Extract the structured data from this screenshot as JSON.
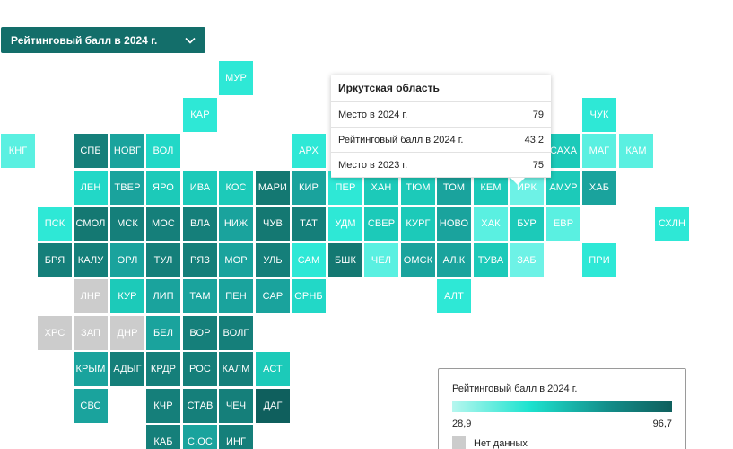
{
  "selector": {
    "label": "Рейтинговый балл в 2024 г."
  },
  "regions": [
    {
      "label": "МУР",
      "c": 6,
      "r": 0,
      "color": "#2ee8d6"
    },
    {
      "label": "КАР",
      "c": 5,
      "r": 1,
      "color": "#2ee8d6"
    },
    {
      "label": "КНГ",
      "c": 0,
      "r": 2,
      "color": "#5af0e1"
    },
    {
      "label": "СПБ",
      "c": 2,
      "r": 2,
      "color": "#157f7a"
    },
    {
      "label": "НОВГ",
      "c": 3,
      "r": 2,
      "color": "#1aa39d"
    },
    {
      "label": "ВОЛ",
      "c": 4,
      "r": 2,
      "color": "#22d8c7"
    },
    {
      "label": "АРХ",
      "c": 8,
      "r": 2,
      "color": "#2ee8d6"
    },
    {
      "label": "САХА",
      "c": 15,
      "r": 2,
      "color": "#1ccab9"
    },
    {
      "label": "МАГ",
      "c": 16,
      "r": 2,
      "color": "#5af0e1"
    },
    {
      "label": "КАМ",
      "c": 17,
      "r": 2,
      "color": "#5af0e1"
    },
    {
      "label": "ЧУК",
      "c": 16,
      "r": 1,
      "color": "#2ee8d6"
    },
    {
      "label": "ЛЕН",
      "c": 2,
      "r": 3,
      "color": "#22d8c7"
    },
    {
      "label": "ТВЕР",
      "c": 3,
      "r": 3,
      "color": "#1aa39d"
    },
    {
      "label": "ЯРО",
      "c": 4,
      "r": 3,
      "color": "#1ccab9"
    },
    {
      "label": "ИВА",
      "c": 5,
      "r": 3,
      "color": "#1ccab9"
    },
    {
      "label": "КОС",
      "c": 6,
      "r": 3,
      "color": "#1ccab9"
    },
    {
      "label": "МАРИ",
      "c": 7,
      "r": 3,
      "color": "#147872"
    },
    {
      "label": "КИР",
      "c": 8,
      "r": 3,
      "color": "#1aa39d"
    },
    {
      "label": "ПЕР",
      "c": 9,
      "r": 3,
      "color": "#2ee8d6"
    },
    {
      "label": "ХАН",
      "c": 10,
      "r": 3,
      "color": "#1ccab9"
    },
    {
      "label": "ТЮМ",
      "c": 11,
      "r": 3,
      "color": "#1ccab9"
    },
    {
      "label": "ТОМ",
      "c": 12,
      "r": 3,
      "color": "#1aa39d"
    },
    {
      "label": "КЕМ",
      "c": 13,
      "r": 3,
      "color": "#1ccab9"
    },
    {
      "label": "ИРК",
      "c": 14,
      "r": 3,
      "color": "#6df2e6"
    },
    {
      "label": "АМУР",
      "c": 15,
      "r": 3,
      "color": "#1ccab9"
    },
    {
      "label": "ХАБ",
      "c": 16,
      "r": 3,
      "color": "#1aa39d"
    },
    {
      "label": "ПСК",
      "c": 1,
      "r": 4,
      "color": "#2ee8d6"
    },
    {
      "label": "СМОЛ",
      "c": 2,
      "r": 4,
      "color": "#147872"
    },
    {
      "label": "МСК",
      "c": 3,
      "r": 4,
      "color": "#157f7a"
    },
    {
      "label": "МОС",
      "c": 4,
      "r": 4,
      "color": "#157f7a"
    },
    {
      "label": "ВЛА",
      "c": 5,
      "r": 4,
      "color": "#157f7a"
    },
    {
      "label": "НИЖ",
      "c": 6,
      "r": 4,
      "color": "#1aa39d"
    },
    {
      "label": "ЧУВ",
      "c": 7,
      "r": 4,
      "color": "#147872"
    },
    {
      "label": "ТАТ",
      "c": 8,
      "r": 4,
      "color": "#157f7a"
    },
    {
      "label": "УДМ",
      "c": 9,
      "r": 4,
      "color": "#2ee8d6"
    },
    {
      "label": "СВЕР",
      "c": 10,
      "r": 4,
      "color": "#1ccab9"
    },
    {
      "label": "КУРГ",
      "c": 11,
      "r": 4,
      "color": "#1ccab9"
    },
    {
      "label": "НОВО",
      "c": 12,
      "r": 4,
      "color": "#1aa39d"
    },
    {
      "label": "ХАК",
      "c": 13,
      "r": 4,
      "color": "#5af0e1"
    },
    {
      "label": "БУР",
      "c": 14,
      "r": 4,
      "color": "#1ccab9"
    },
    {
      "label": "ЕВР",
      "c": 15,
      "r": 4,
      "color": "#5af0e1"
    },
    {
      "label": "СХЛН",
      "c": 18,
      "r": 4,
      "color": "#2ee8d6"
    },
    {
      "label": "БРЯ",
      "c": 1,
      "r": 5,
      "color": "#157f7a"
    },
    {
      "label": "КАЛУ",
      "c": 2,
      "r": 5,
      "color": "#157f7a"
    },
    {
      "label": "ОРЛ",
      "c": 3,
      "r": 5,
      "color": "#1aa39d"
    },
    {
      "label": "ТУЛ",
      "c": 4,
      "r": 5,
      "color": "#157f7a"
    },
    {
      "label": "РЯЗ",
      "c": 5,
      "r": 5,
      "color": "#157f7a"
    },
    {
      "label": "МОР",
      "c": 6,
      "r": 5,
      "color": "#1aa39d"
    },
    {
      "label": "УЛЬ",
      "c": 7,
      "r": 5,
      "color": "#157f7a"
    },
    {
      "label": "САМ",
      "c": 8,
      "r": 5,
      "color": "#2ee8d6"
    },
    {
      "label": "БШК",
      "c": 9,
      "r": 5,
      "color": "#147872"
    },
    {
      "label": "ЧЕЛ",
      "c": 10,
      "r": 5,
      "color": "#5af0e1"
    },
    {
      "label": "ОМСК",
      "c": 11,
      "r": 5,
      "color": "#1aa39d"
    },
    {
      "label": "АЛ.К",
      "c": 12,
      "r": 5,
      "color": "#1aa39d"
    },
    {
      "label": "ТУВА",
      "c": 13,
      "r": 5,
      "color": "#1ccab9"
    },
    {
      "label": "ЗАБ",
      "c": 14,
      "r": 5,
      "color": "#6df2e6"
    },
    {
      "label": "ПРИ",
      "c": 16,
      "r": 5,
      "color": "#2ee8d6"
    },
    {
      "label": "ЛНР",
      "c": 2,
      "r": 6,
      "color": "#cccccc"
    },
    {
      "label": "КУР",
      "c": 3,
      "r": 6,
      "color": "#1ccab9"
    },
    {
      "label": "ЛИП",
      "c": 4,
      "r": 6,
      "color": "#1aa39d"
    },
    {
      "label": "ТАМ",
      "c": 5,
      "r": 6,
      "color": "#1aa39d"
    },
    {
      "label": "ПЕН",
      "c": 6,
      "r": 6,
      "color": "#1aa39d"
    },
    {
      "label": "САР",
      "c": 7,
      "r": 6,
      "color": "#1aa39d"
    },
    {
      "label": "ОРНБ",
      "c": 8,
      "r": 6,
      "color": "#22d8c7"
    },
    {
      "label": "АЛТ",
      "c": 12,
      "r": 6,
      "color": "#2ee8d6"
    },
    {
      "label": "ХРС",
      "c": 1,
      "r": 7,
      "color": "#cccccc"
    },
    {
      "label": "ЗАП",
      "c": 2,
      "r": 7,
      "color": "#cccccc"
    },
    {
      "label": "ДНР",
      "c": 3,
      "r": 7,
      "color": "#cccccc"
    },
    {
      "label": "БЕЛ",
      "c": 4,
      "r": 7,
      "color": "#1aa39d"
    },
    {
      "label": "ВОР",
      "c": 5,
      "r": 7,
      "color": "#157f7a"
    },
    {
      "label": "ВОЛГ",
      "c": 6,
      "r": 7,
      "color": "#157f7a"
    },
    {
      "label": "КРЫМ",
      "c": 2,
      "r": 8,
      "color": "#1aa39d"
    },
    {
      "label": "АДЫГ",
      "c": 3,
      "r": 8,
      "color": "#157f7a"
    },
    {
      "label": "КРДР",
      "c": 4,
      "r": 8,
      "color": "#157f7a"
    },
    {
      "label": "РОС",
      "c": 5,
      "r": 8,
      "color": "#157f7a"
    },
    {
      "label": "КАЛМ",
      "c": 6,
      "r": 8,
      "color": "#157f7a"
    },
    {
      "label": "АСТ",
      "c": 7,
      "r": 8,
      "color": "#1ccab9"
    },
    {
      "label": "СВС",
      "c": 2,
      "r": 9,
      "color": "#1aa39d"
    },
    {
      "label": "КЧР",
      "c": 4,
      "r": 9,
      "color": "#157f7a"
    },
    {
      "label": "СТАВ",
      "c": 5,
      "r": 9,
      "color": "#157f7a"
    },
    {
      "label": "ЧЕЧ",
      "c": 6,
      "r": 9,
      "color": "#157f7a"
    },
    {
      "label": "ДАГ",
      "c": 7,
      "r": 9,
      "color": "#0f5f5d"
    },
    {
      "label": "КАБ",
      "c": 4,
      "r": 10,
      "color": "#157f7a"
    },
    {
      "label": "С.ОС",
      "c": 5,
      "r": 10,
      "color": "#1aa39d"
    },
    {
      "label": "ИНГ",
      "c": 6,
      "r": 10,
      "color": "#157f7a"
    }
  ],
  "tooltip": {
    "title": "Иркутская область",
    "rows": [
      {
        "label": "Место в 2024 г.",
        "value": "79"
      },
      {
        "label": "Рейтинговый балл в 2024 г.",
        "value": "43,2"
      },
      {
        "label": "Место в 2023 г.",
        "value": "75"
      }
    ]
  },
  "legend": {
    "title": "Рейтинговый балл в 2024 г.",
    "min": "28,9",
    "max": "96,7",
    "nodata": "Нет данных",
    "gradient_colors": [
      "#b6f7ef",
      "#1de3cf",
      "#138f8b",
      "#0f5f5d"
    ],
    "nodata_color": "#cccccc"
  }
}
